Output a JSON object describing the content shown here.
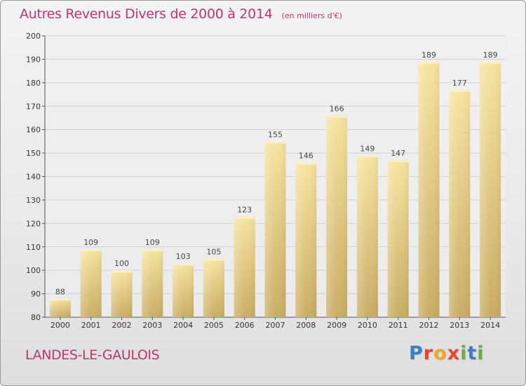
{
  "header": {
    "title": "Autres Revenus Divers de 2000 à 2014",
    "subtitle": "(en milliers d'€)"
  },
  "footer": {
    "town": "LANDES-LE-GAULOIS",
    "logo": "Proxiti"
  },
  "colors": {
    "title": "#c0356b",
    "bar_light": "#f7e4a0",
    "bar_dark": "#c9ad64",
    "grid": "#d0d0d0"
  },
  "chart_data": {
    "type": "bar",
    "title": "Autres Revenus Divers de 2000 à 2014",
    "subtitle": "(en milliers d'€)",
    "categories": [
      "2000",
      "2001",
      "2002",
      "2003",
      "2004",
      "2005",
      "2006",
      "2007",
      "2008",
      "2009",
      "2010",
      "2011",
      "2012",
      "2013",
      "2014"
    ],
    "values": [
      88,
      109,
      100,
      109,
      103,
      105,
      123,
      155,
      146,
      166,
      149,
      147,
      189,
      177,
      189
    ],
    "ylim": [
      80,
      200
    ],
    "yticks": [
      80,
      90,
      100,
      110,
      120,
      130,
      140,
      150,
      160,
      170,
      180,
      190,
      200
    ],
    "grid": true,
    "data_labels": true,
    "xlabel": "",
    "ylabel": ""
  }
}
